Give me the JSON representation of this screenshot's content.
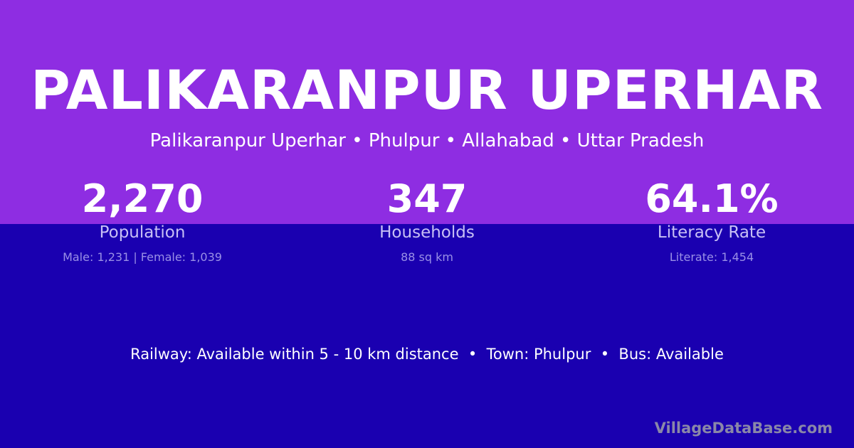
{
  "title": "PALIKARANPUR UPERHAR",
  "subtitle": "Palikaranpur Uperhar • Phulpur • Allahabad • Uttar Pradesh",
  "stats": [
    {
      "value": "2,270",
      "label": "Population",
      "sub": "Male: 1,231 | Female: 1,039"
    },
    {
      "value": "347",
      "label": "Households",
      "sub": "88 sq km"
    },
    {
      "value": "64.1%",
      "label": "Literacy Rate",
      "sub": "Literate: 1,454"
    }
  ],
  "facilities": "Railway: Available within 5 - 10 km distance  •  Town: Phulpur  •  Bus: Available",
  "watermark": "VillageDataBase.com",
  "colors": {
    "top": "#8e2de2",
    "bottom": "#1a00b0"
  }
}
